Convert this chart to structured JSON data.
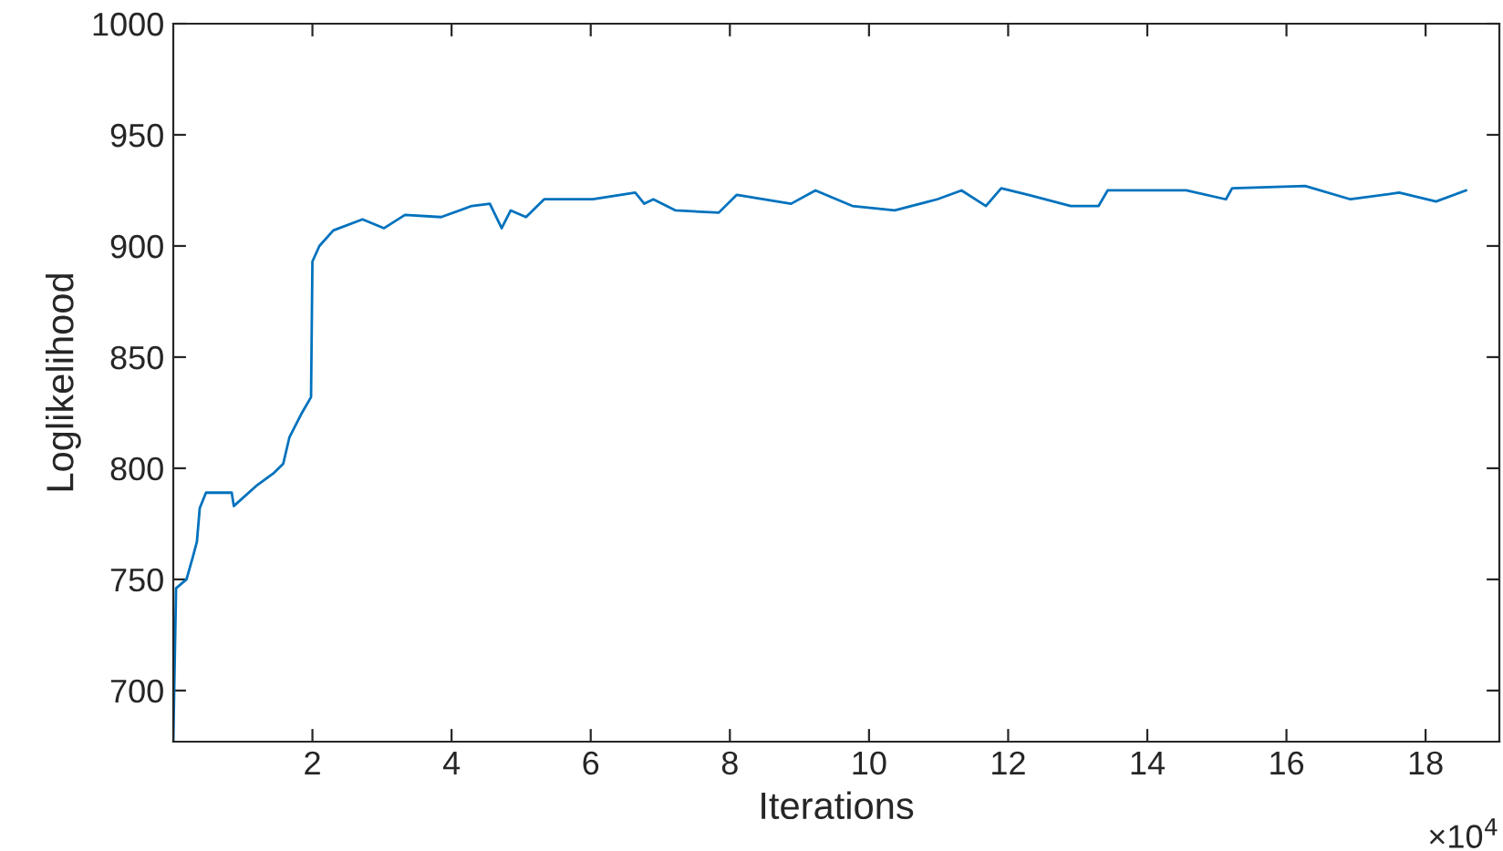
{
  "chart_data": {
    "type": "line",
    "xlabel": "Iterations",
    "ylabel": "Loglikelihood",
    "annotations": [
      "×10$^{4}$"
    ],
    "x": [
      0,
      0.04,
      0.19,
      0.28,
      0.34,
      0.38,
      0.47,
      0.84,
      0.87,
      1.19,
      1.45,
      1.58,
      1.67,
      1.85,
      1.98,
      2.0,
      2.1,
      2.3,
      2.72,
      3.03,
      3.33,
      3.85,
      4.29,
      4.55,
      4.72,
      4.85,
      5.07,
      5.33,
      6.03,
      6.64,
      6.77,
      6.9,
      7.22,
      7.84,
      8.1,
      8.88,
      9.23,
      9.76,
      10.37,
      10.98,
      11.33,
      11.68,
      11.9,
      12.29,
      12.9,
      13.3,
      13.43,
      14.13,
      14.56,
      15.13,
      15.22,
      16.27,
      16.92,
      17.62,
      18.15,
      18.58
    ],
    "series": [
      {
        "color": "#0072bd",
        "values": [
          677,
          746,
          750,
          760,
          767,
          782,
          789,
          789,
          783,
          792,
          798,
          802,
          814,
          825,
          832,
          893,
          900,
          907,
          912,
          908,
          914,
          913,
          918,
          919,
          908,
          916,
          913,
          921,
          921,
          924,
          919,
          921,
          916,
          915,
          923,
          919,
          925,
          918,
          916,
          921,
          925,
          918,
          926,
          923,
          918,
          918,
          925,
          925,
          925,
          921,
          926,
          927,
          921,
          924,
          920,
          925
        ]
      }
    ],
    "xlim": [
      0,
      19.06
    ],
    "ylim": [
      677,
      1000
    ],
    "xticks": [
      2,
      4,
      6,
      8,
      10,
      12,
      14,
      16,
      18
    ],
    "yticks": [
      700,
      750,
      800,
      850,
      900,
      950,
      1000
    ],
    "marker": "none",
    "line_style": "solid"
  }
}
